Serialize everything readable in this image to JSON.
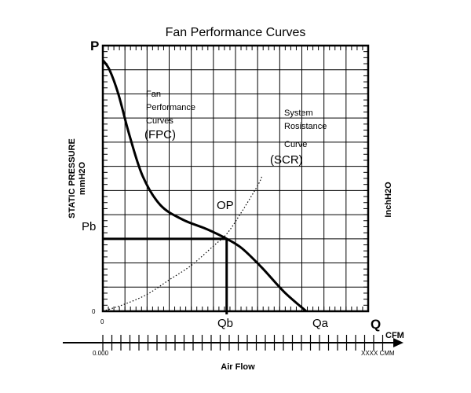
{
  "chart_data": {
    "type": "line",
    "title": "Fan Performance Curves",
    "xlabel": "Air Flow",
    "ylabel": "STATIC PRESSURE",
    "ylabel_unit": "mmH2O",
    "ylabel_right": "InchH2O",
    "x_unit_cfm": "CFM",
    "x_unit_cmm": "XXXX CMM",
    "x_start_label": "0.000",
    "origin_x_label": "0",
    "origin_y_label": "0",
    "axis_p": "P",
    "axis_q": "Q",
    "xlim": [
      0,
      12
    ],
    "ylim": [
      0,
      11
    ],
    "grid": true,
    "series": [
      {
        "name": "Fan Performance Curves (FPC)",
        "style": "solid",
        "x": [
          0,
          0.3,
          0.7,
          1.2,
          1.8,
          2.6,
          3.6,
          4.7,
          5.6,
          6.3,
          7.2,
          8.2,
          9.2
        ],
        "y": [
          10.4,
          10.0,
          9.0,
          7.3,
          5.6,
          4.4,
          3.8,
          3.4,
          3.0,
          2.6,
          1.8,
          0.8,
          0.0
        ]
      },
      {
        "name": "System Resistance Curve (SCR)",
        "style": "dotted",
        "x": [
          0,
          1.0,
          2.0,
          3.0,
          4.0,
          5.0,
          5.6,
          6.2,
          7.0,
          7.2
        ],
        "y": [
          0,
          0.3,
          0.7,
          1.3,
          1.9,
          2.7,
          3.2,
          4.0,
          5.2,
          5.6
        ]
      }
    ],
    "operating_point": {
      "label": "OP",
      "x": 5.6,
      "y": 3.0,
      "x_label": "Qb",
      "y_label": "Pb"
    },
    "marker_qa": {
      "label": "Qa",
      "x": 9.2
    },
    "annotations": {
      "fpc_lines": [
        "Fan",
        "Performance",
        "Curves",
        "(FPC)"
      ],
      "scr_lines": [
        "System",
        "Rosistance",
        "Curve",
        "(SCR)"
      ]
    }
  }
}
